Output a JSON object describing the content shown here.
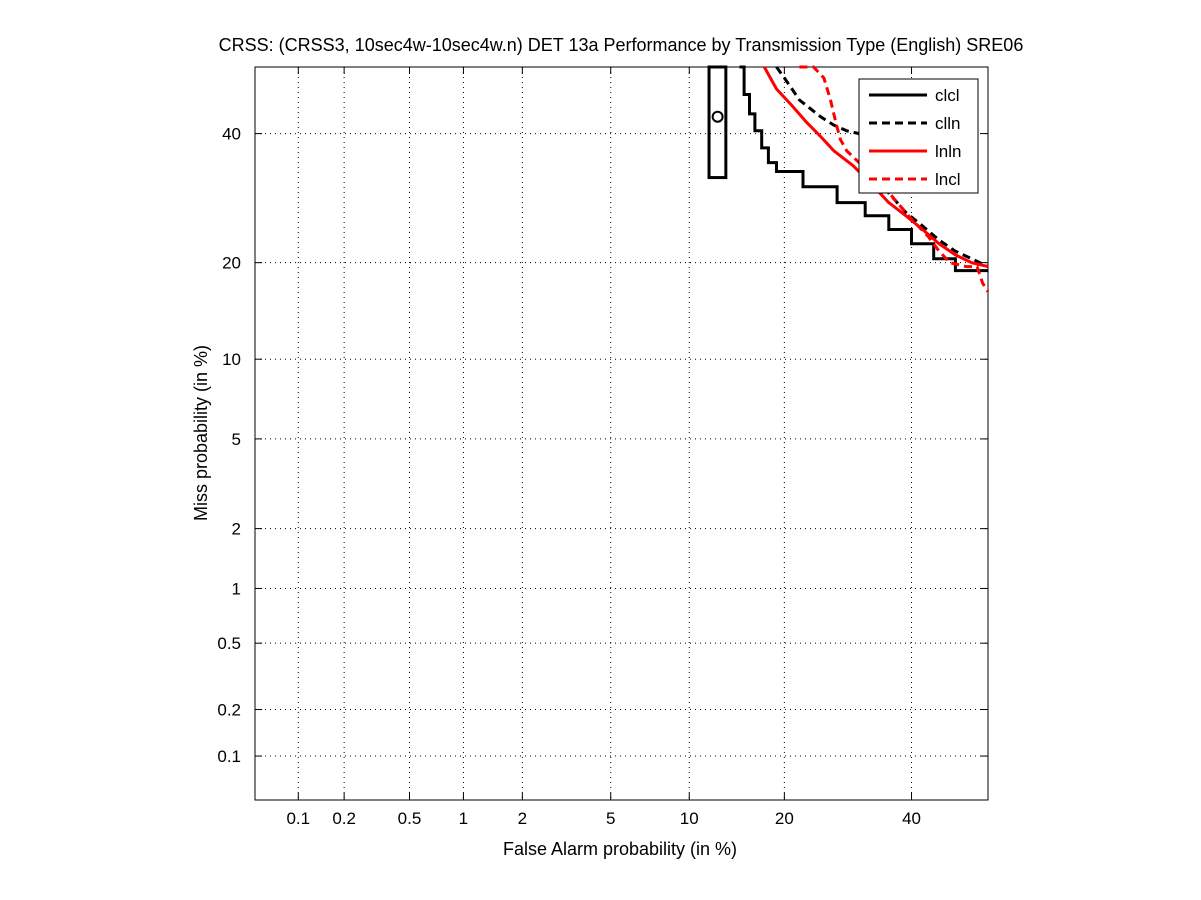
{
  "chart_data": {
    "type": "line",
    "title": "CRSS: (CRSS3, 10sec4w-10sec4w.n) DET 13a Performance by Transmission Type (English) SRE06",
    "xlabel": "False Alarm probability (in %)",
    "ylabel": "Miss probability (in %)",
    "scale": "normal-deviate (DET)",
    "grid": true,
    "legend_position": "top-right",
    "xlim": [
      0.05,
      54
    ],
    "ylim": [
      0.05,
      52
    ],
    "x_ticks": [
      {
        "value": 0.1,
        "label": "0.1"
      },
      {
        "value": 0.2,
        "label": "0.2"
      },
      {
        "value": 0.5,
        "label": "0.5"
      },
      {
        "value": 1,
        "label": "1"
      },
      {
        "value": 2,
        "label": "2"
      },
      {
        "value": 5,
        "label": "5"
      },
      {
        "value": 10,
        "label": "10"
      },
      {
        "value": 20,
        "label": "20"
      },
      {
        "value": 40,
        "label": "40"
      }
    ],
    "y_ticks": [
      {
        "value": 0.1,
        "label": "0.1"
      },
      {
        "value": 0.2,
        "label": "0.2"
      },
      {
        "value": 0.5,
        "label": "0.5"
      },
      {
        "value": 1,
        "label": "1"
      },
      {
        "value": 2,
        "label": "2"
      },
      {
        "value": 5,
        "label": "5"
      },
      {
        "value": 10,
        "label": "10"
      },
      {
        "value": 20,
        "label": "20"
      },
      {
        "value": 40,
        "label": "40"
      }
    ],
    "series": [
      {
        "name": "clcl",
        "color": "#000000",
        "dash": "solid",
        "x": [
          14.7,
          15.2,
          15.2,
          15.8,
          15.8,
          16.4,
          16.4,
          17.2,
          17.2,
          18.0,
          18.0,
          19.0,
          19.0,
          22.5,
          22.5,
          27.5,
          27.5,
          32.0,
          32.0,
          36.0,
          36.0,
          40.0,
          40.0,
          44.0,
          44.0,
          48.0,
          48.0,
          54.0
        ],
        "y": [
          52.0,
          52.0,
          47.0,
          47.0,
          43.5,
          43.5,
          40.5,
          40.5,
          37.5,
          37.5,
          35.0,
          35.0,
          33.5,
          33.5,
          31.0,
          31.0,
          28.5,
          28.5,
          26.5,
          26.5,
          24.5,
          24.5,
          22.5,
          22.5,
          20.5,
          20.5,
          19.0,
          19.0
        ]
      },
      {
        "name": "clln",
        "color": "#000000",
        "dash": "dashed",
        "x": [
          19.0,
          20.0,
          21.0,
          22.0,
          23.0,
          25.0,
          27.0,
          29.0,
          31.0,
          33.0,
          36.0,
          39.0,
          42.0,
          45.0,
          48.0,
          51.0,
          54.0
        ],
        "y": [
          52.0,
          50.0,
          48.0,
          46.0,
          45.0,
          43.0,
          41.5,
          40.5,
          40.0,
          36.0,
          30.0,
          27.0,
          25.0,
          23.0,
          21.5,
          20.5,
          19.5
        ]
      },
      {
        "name": "lnln",
        "color": "#ff0000",
        "dash": "solid",
        "x": [
          17.5,
          19.0,
          21.0,
          23.0,
          25.0,
          27.0,
          30.0,
          33.0,
          36.0,
          39.0,
          42.0,
          45.0,
          48.0,
          51.0,
          54.0
        ],
        "y": [
          52.0,
          48.0,
          45.0,
          42.0,
          39.5,
          37.0,
          34.5,
          31.5,
          28.5,
          26.5,
          24.5,
          22.5,
          21.0,
          20.0,
          19.5
        ]
      },
      {
        "name": "lncl",
        "color": "#ff0000",
        "dash": "dashed",
        "x": [
          22.0,
          24.0,
          25.5,
          26.5,
          27.3,
          28.0,
          29.0,
          31.0,
          34.0,
          37.0,
          40.0,
          43.0,
          45.0,
          47.0,
          50.0,
          52.0,
          53.0,
          54.0
        ],
        "y": [
          52.0,
          52.0,
          50.0,
          46.0,
          42.0,
          39.0,
          37.0,
          35.0,
          32.5,
          29.0,
          26.0,
          23.5,
          21.5,
          20.0,
          19.5,
          19.5,
          17.5,
          16.5
        ]
      }
    ],
    "marker": {
      "x": 12.5,
      "y": 43,
      "shape": "circle",
      "box_x": [
        11.7,
        13.3
      ],
      "box_y": [
        32.5,
        52.0
      ]
    }
  }
}
